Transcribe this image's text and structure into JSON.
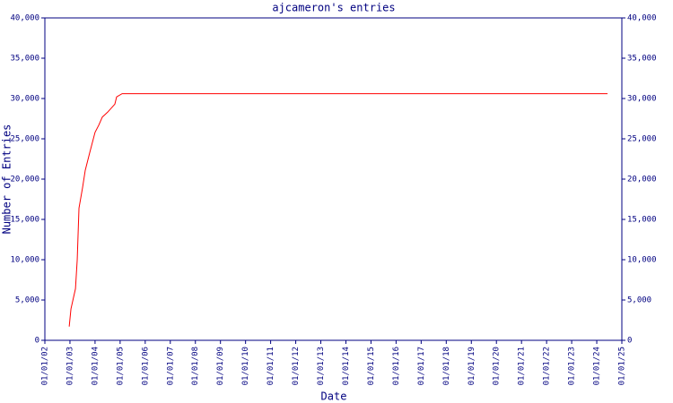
{
  "chart_data": {
    "type": "line",
    "title": "ajcameron's entries",
    "x_label": "Date",
    "y_label": "Number of Entries",
    "x": [
      2002.97,
      2003.04,
      2003.22,
      2003.29,
      2003.36,
      2003.5,
      2003.61,
      2003.79,
      2004.0,
      2004.15,
      2004.29,
      2004.5,
      2004.79,
      2004.86,
      2005.08,
      2024.43
    ],
    "values": [
      1700,
      3900,
      6400,
      10000,
      16400,
      18900,
      21100,
      23300,
      25800,
      26700,
      27700,
      28300,
      29300,
      30200,
      30600,
      30600
    ],
    "color": "#ff0000",
    "axis_color": "#000080",
    "xlim": [
      2002,
      2025
    ],
    "xticks": [
      {
        "value": 2002,
        "label": "01/01/02"
      },
      {
        "value": 2003,
        "label": "01/01/03"
      },
      {
        "value": 2004,
        "label": "01/01/04"
      },
      {
        "value": 2005,
        "label": "01/01/05"
      },
      {
        "value": 2006,
        "label": "01/01/06"
      },
      {
        "value": 2007,
        "label": "01/01/07"
      },
      {
        "value": 2008,
        "label": "01/01/08"
      },
      {
        "value": 2009,
        "label": "01/01/09"
      },
      {
        "value": 2010,
        "label": "01/01/10"
      },
      {
        "value": 2011,
        "label": "01/01/11"
      },
      {
        "value": 2012,
        "label": "01/01/12"
      },
      {
        "value": 2013,
        "label": "01/01/13"
      },
      {
        "value": 2014,
        "label": "01/01/14"
      },
      {
        "value": 2015,
        "label": "01/01/15"
      },
      {
        "value": 2016,
        "label": "01/01/16"
      },
      {
        "value": 2017,
        "label": "01/01/17"
      },
      {
        "value": 2018,
        "label": "01/01/18"
      },
      {
        "value": 2019,
        "label": "01/01/19"
      },
      {
        "value": 2020,
        "label": "01/01/20"
      },
      {
        "value": 2021,
        "label": "01/01/21"
      },
      {
        "value": 2022,
        "label": "01/01/22"
      },
      {
        "value": 2023,
        "label": "01/01/23"
      },
      {
        "value": 2024,
        "label": "01/01/24"
      },
      {
        "value": 2025,
        "label": "01/01/25"
      }
    ],
    "ylim": [
      0,
      40000
    ],
    "yticks": [
      0,
      {
        "value": 5000,
        "label": "5,000"
      },
      {
        "value": 10000,
        "label": "10,000"
      },
      {
        "value": 15000,
        "label": "15,000"
      },
      {
        "value": 20000,
        "label": "20,000"
      },
      {
        "value": 25000,
        "label": "25,000"
      },
      {
        "value": 30000,
        "label": "30,000"
      },
      {
        "value": 35000,
        "label": "35,000"
      },
      {
        "value": 40000,
        "label": "40,000"
      }
    ]
  }
}
